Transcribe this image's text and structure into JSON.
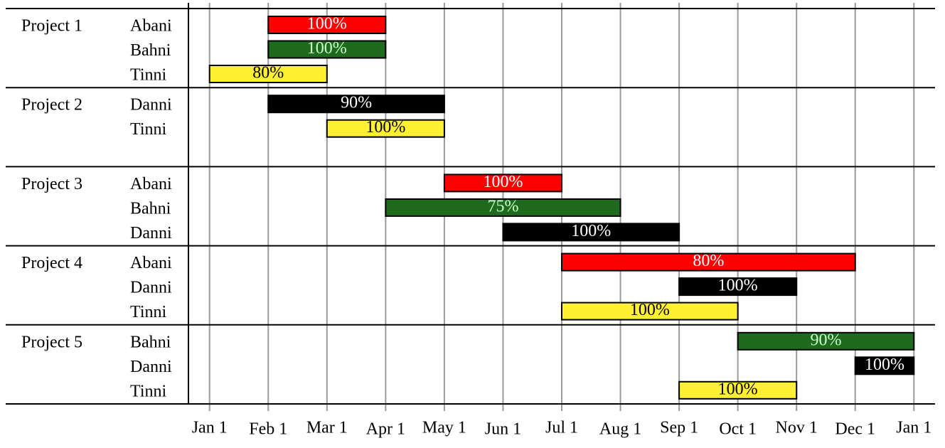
{
  "chart_data": {
    "type": "gantt",
    "xlim": [
      -0.36,
      12.36
    ],
    "xticks": [
      {
        "value": 0,
        "label": "Jan 1"
      },
      {
        "value": 1,
        "label": "Feb 1"
      },
      {
        "value": 2,
        "label": "Mar 1"
      },
      {
        "value": 3,
        "label": "Apr 1"
      },
      {
        "value": 4,
        "label": "May 1"
      },
      {
        "value": 5,
        "label": "Jun 1"
      },
      {
        "value": 6,
        "label": "Jul 1"
      },
      {
        "value": 7,
        "label": "Aug 1"
      },
      {
        "value": 8,
        "label": "Sep 1"
      },
      {
        "value": 9,
        "label": "Oct 1"
      },
      {
        "value": 10,
        "label": "Nov 1"
      },
      {
        "value": 11,
        "label": "Dec 1"
      },
      {
        "value": 12,
        "label": "Jan 1"
      }
    ],
    "grid": true,
    "projects": [
      {
        "name": "Project 1",
        "tasks": [
          {
            "name": "Abani",
            "start": 1,
            "end": 3,
            "label": "100%",
            "color": "#ff0000",
            "label_color": "#ffffff"
          },
          {
            "name": "Bahni",
            "start": 1,
            "end": 3,
            "label": "100%",
            "color": "#1e6b1e",
            "label_color": "#ccffcc"
          },
          {
            "name": "Tinni",
            "start": 0,
            "end": 2,
            "label": "80%",
            "color": "#fff033",
            "label_color": "#000000"
          }
        ]
      },
      {
        "name": "Project 2",
        "tasks": [
          {
            "name": "Danni",
            "start": 1,
            "end": 4,
            "label": "90%",
            "color": "#000000",
            "label_color": "#ffffff"
          },
          {
            "name": "Tinni",
            "start": 2,
            "end": 4,
            "label": "100%",
            "color": "#fff033",
            "label_color": "#000000"
          }
        ]
      },
      {
        "name": "Project 3",
        "tasks": [
          {
            "name": "Abani",
            "start": 4,
            "end": 6,
            "label": "100%",
            "color": "#ff0000",
            "label_color": "#ffffff"
          },
          {
            "name": "Bahni",
            "start": 3,
            "end": 7,
            "label": "75%",
            "color": "#1e6b1e",
            "label_color": "#ccffcc"
          },
          {
            "name": "Danni",
            "start": 5,
            "end": 8,
            "label": "100%",
            "color": "#000000",
            "label_color": "#ffffff"
          }
        ]
      },
      {
        "name": "Project 4",
        "tasks": [
          {
            "name": "Abani",
            "start": 6,
            "end": 11,
            "label": "80%",
            "color": "#ff0000",
            "label_color": "#ffffff"
          },
          {
            "name": "Danni",
            "start": 8,
            "end": 10,
            "label": "100%",
            "color": "#000000",
            "label_color": "#ffffff"
          },
          {
            "name": "Tinni",
            "start": 6,
            "end": 9,
            "label": "100%",
            "color": "#fff033",
            "label_color": "#000000"
          }
        ]
      },
      {
        "name": "Project 5",
        "tasks": [
          {
            "name": "Bahni",
            "start": 9,
            "end": 12,
            "label": "90%",
            "color": "#1e6b1e",
            "label_color": "#ccffcc"
          },
          {
            "name": "Danni",
            "start": 11,
            "end": 12,
            "label": "100%",
            "color": "#000000",
            "label_color": "#ffffff"
          },
          {
            "name": "Tinni",
            "start": 8,
            "end": 10,
            "label": "100%",
            "color": "#fff033",
            "label_color": "#000000"
          }
        ]
      }
    ]
  }
}
